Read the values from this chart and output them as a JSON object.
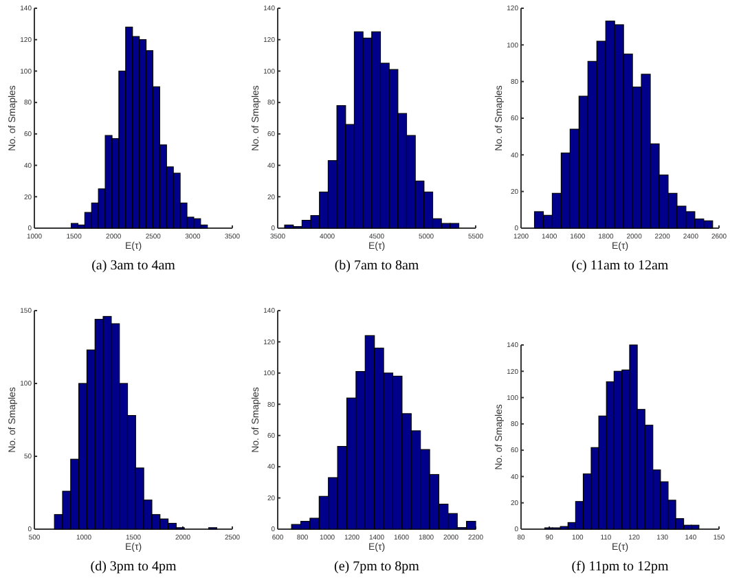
{
  "chart_data": [
    {
      "type": "histogram",
      "title": "(a) 3am to 4am",
      "xlabel": "E(τ)",
      "ylabel": "No. of Smaples",
      "color": "#00008b",
      "xlim": [
        1000,
        3500
      ],
      "xticks": [
        1000,
        1500,
        2000,
        2500,
        3000,
        3500
      ],
      "ylim": [
        0,
        140
      ],
      "yticks": [
        0,
        20,
        40,
        60,
        80,
        100,
        120,
        140
      ],
      "grid": false,
      "bins": [
        1465,
        1551,
        1637,
        1723,
        1809,
        1895,
        1981,
        2067,
        2153,
        2239,
        2325,
        2411,
        2497,
        2583,
        2669,
        2755,
        2841,
        2927,
        3013,
        3099,
        3185
      ],
      "values": [
        3,
        2,
        10,
        16,
        25,
        59,
        57,
        100,
        128,
        122,
        120,
        113,
        90,
        53,
        39,
        35,
        16,
        7,
        6,
        2
      ]
    },
    {
      "type": "histogram",
      "title": "(b) 7am to 8am",
      "xlabel": "E(τ)",
      "ylabel": "No. of Smaples",
      "color": "#00008b",
      "xlim": [
        3500,
        5500
      ],
      "xticks": [
        3500,
        4000,
        4500,
        5000,
        5500
      ],
      "ylim": [
        0,
        140
      ],
      "yticks": [
        0,
        20,
        40,
        60,
        80,
        100,
        120,
        140
      ],
      "grid": false,
      "bins": [
        3570,
        3658,
        3746,
        3834,
        3922,
        4010,
        4098,
        4186,
        4274,
        4362,
        4450,
        4538,
        4626,
        4714,
        4802,
        4890,
        4978,
        5066,
        5154,
        5242,
        5330
      ],
      "values": [
        2,
        1,
        5,
        8,
        23,
        43,
        78,
        66,
        125,
        121,
        125,
        105,
        101,
        73,
        59,
        30,
        23,
        6,
        3,
        3
      ]
    },
    {
      "type": "histogram",
      "title": "(c) 11am to 12am",
      "xlabel": "E(τ)",
      "ylabel": "No. of Smaples",
      "color": "#00008b",
      "xlim": [
        1200,
        2600
      ],
      "xticks": [
        1200,
        1400,
        1600,
        1800,
        2000,
        2200,
        2400,
        2600
      ],
      "ylim": [
        0,
        120
      ],
      "yticks": [
        0,
        20,
        40,
        60,
        80,
        100,
        120
      ],
      "grid": false,
      "bins": [
        1295,
        1358,
        1421,
        1484,
        1547,
        1610,
        1673,
        1736,
        1799,
        1862,
        1925,
        1988,
        2051,
        2114,
        2177,
        2240,
        2303,
        2366,
        2429,
        2492,
        2555
      ],
      "values": [
        9,
        7,
        19,
        41,
        54,
        72,
        91,
        102,
        113,
        111,
        95,
        77,
        84,
        46,
        29,
        19,
        12,
        9,
        5,
        4
      ]
    },
    {
      "type": "histogram",
      "title": "(d) 3pm to 4pm",
      "xlabel": "E(τ)",
      "ylabel": "No. of Smaples",
      "color": "#00008b",
      "xlim": [
        500,
        2500
      ],
      "xticks": [
        500,
        1000,
        1500,
        2000,
        2500
      ],
      "ylim": [
        0,
        150
      ],
      "yticks": [
        0,
        50,
        100,
        150
      ],
      "grid": false,
      "bins": [
        703,
        785,
        867,
        949,
        1031,
        1113,
        1195,
        1277,
        1359,
        1441,
        1523,
        1605,
        1687,
        1769,
        1851,
        1933,
        2015,
        2097,
        2179,
        2261,
        2343
      ],
      "values": [
        10,
        26,
        48,
        100,
        123,
        144,
        146,
        141,
        100,
        78,
        42,
        20,
        10,
        7,
        4,
        1,
        0,
        0,
        0,
        1
      ]
    },
    {
      "type": "histogram",
      "title": "(e) 7pm to 8pm",
      "xlabel": "E(τ)",
      "ylabel": "No. of Smaples",
      "color": "#00008b",
      "xlim": [
        600,
        2200
      ],
      "xticks": [
        600,
        800,
        1000,
        1200,
        1400,
        1600,
        1800,
        2000,
        2200
      ],
      "ylim": [
        0,
        140
      ],
      "yticks": [
        0,
        20,
        40,
        60,
        80,
        100,
        120,
        140
      ],
      "grid": false,
      "bins": [
        712,
        786.4,
        860.8,
        935.2,
        1009.6,
        1084,
        1158.4,
        1232.8,
        1307.2,
        1381.6,
        1456,
        1530.4,
        1604.8,
        1679.2,
        1753.6,
        1828,
        1902.4,
        1976.8,
        2051.2,
        2125.6,
        2200
      ],
      "values": [
        3,
        5,
        7,
        21,
        33,
        53,
        84,
        101,
        124,
        116,
        100,
        98,
        74,
        63,
        51,
        35,
        16,
        10,
        1,
        5
      ]
    },
    {
      "type": "histogram",
      "title": "(f) 11pm to 12pm",
      "xlabel": "E(τ)",
      "ylabel": "No. of Smaples",
      "color": "#00008b",
      "xlim": [
        80,
        150
      ],
      "xticks": [
        80,
        90,
        100,
        110,
        120,
        130,
        140,
        150
      ],
      "ylim": [
        0,
        140
      ],
      "yticks": [
        0,
        20,
        40,
        60,
        80,
        100,
        120,
        140
      ],
      "grid": false,
      "bins": [
        88.4,
        91.1,
        93.9,
        96.6,
        99.3,
        102.0,
        104.8,
        107.5,
        110.2,
        112.9,
        115.7,
        118.4,
        121.1,
        123.8,
        126.6,
        129.3,
        132.0,
        134.7,
        137.5,
        140.2,
        142.9
      ],
      "values": [
        1,
        1,
        2,
        5,
        21,
        42,
        62,
        86,
        112,
        120,
        121,
        140,
        91,
        79,
        45,
        36,
        22,
        8,
        3,
        3
      ]
    }
  ]
}
